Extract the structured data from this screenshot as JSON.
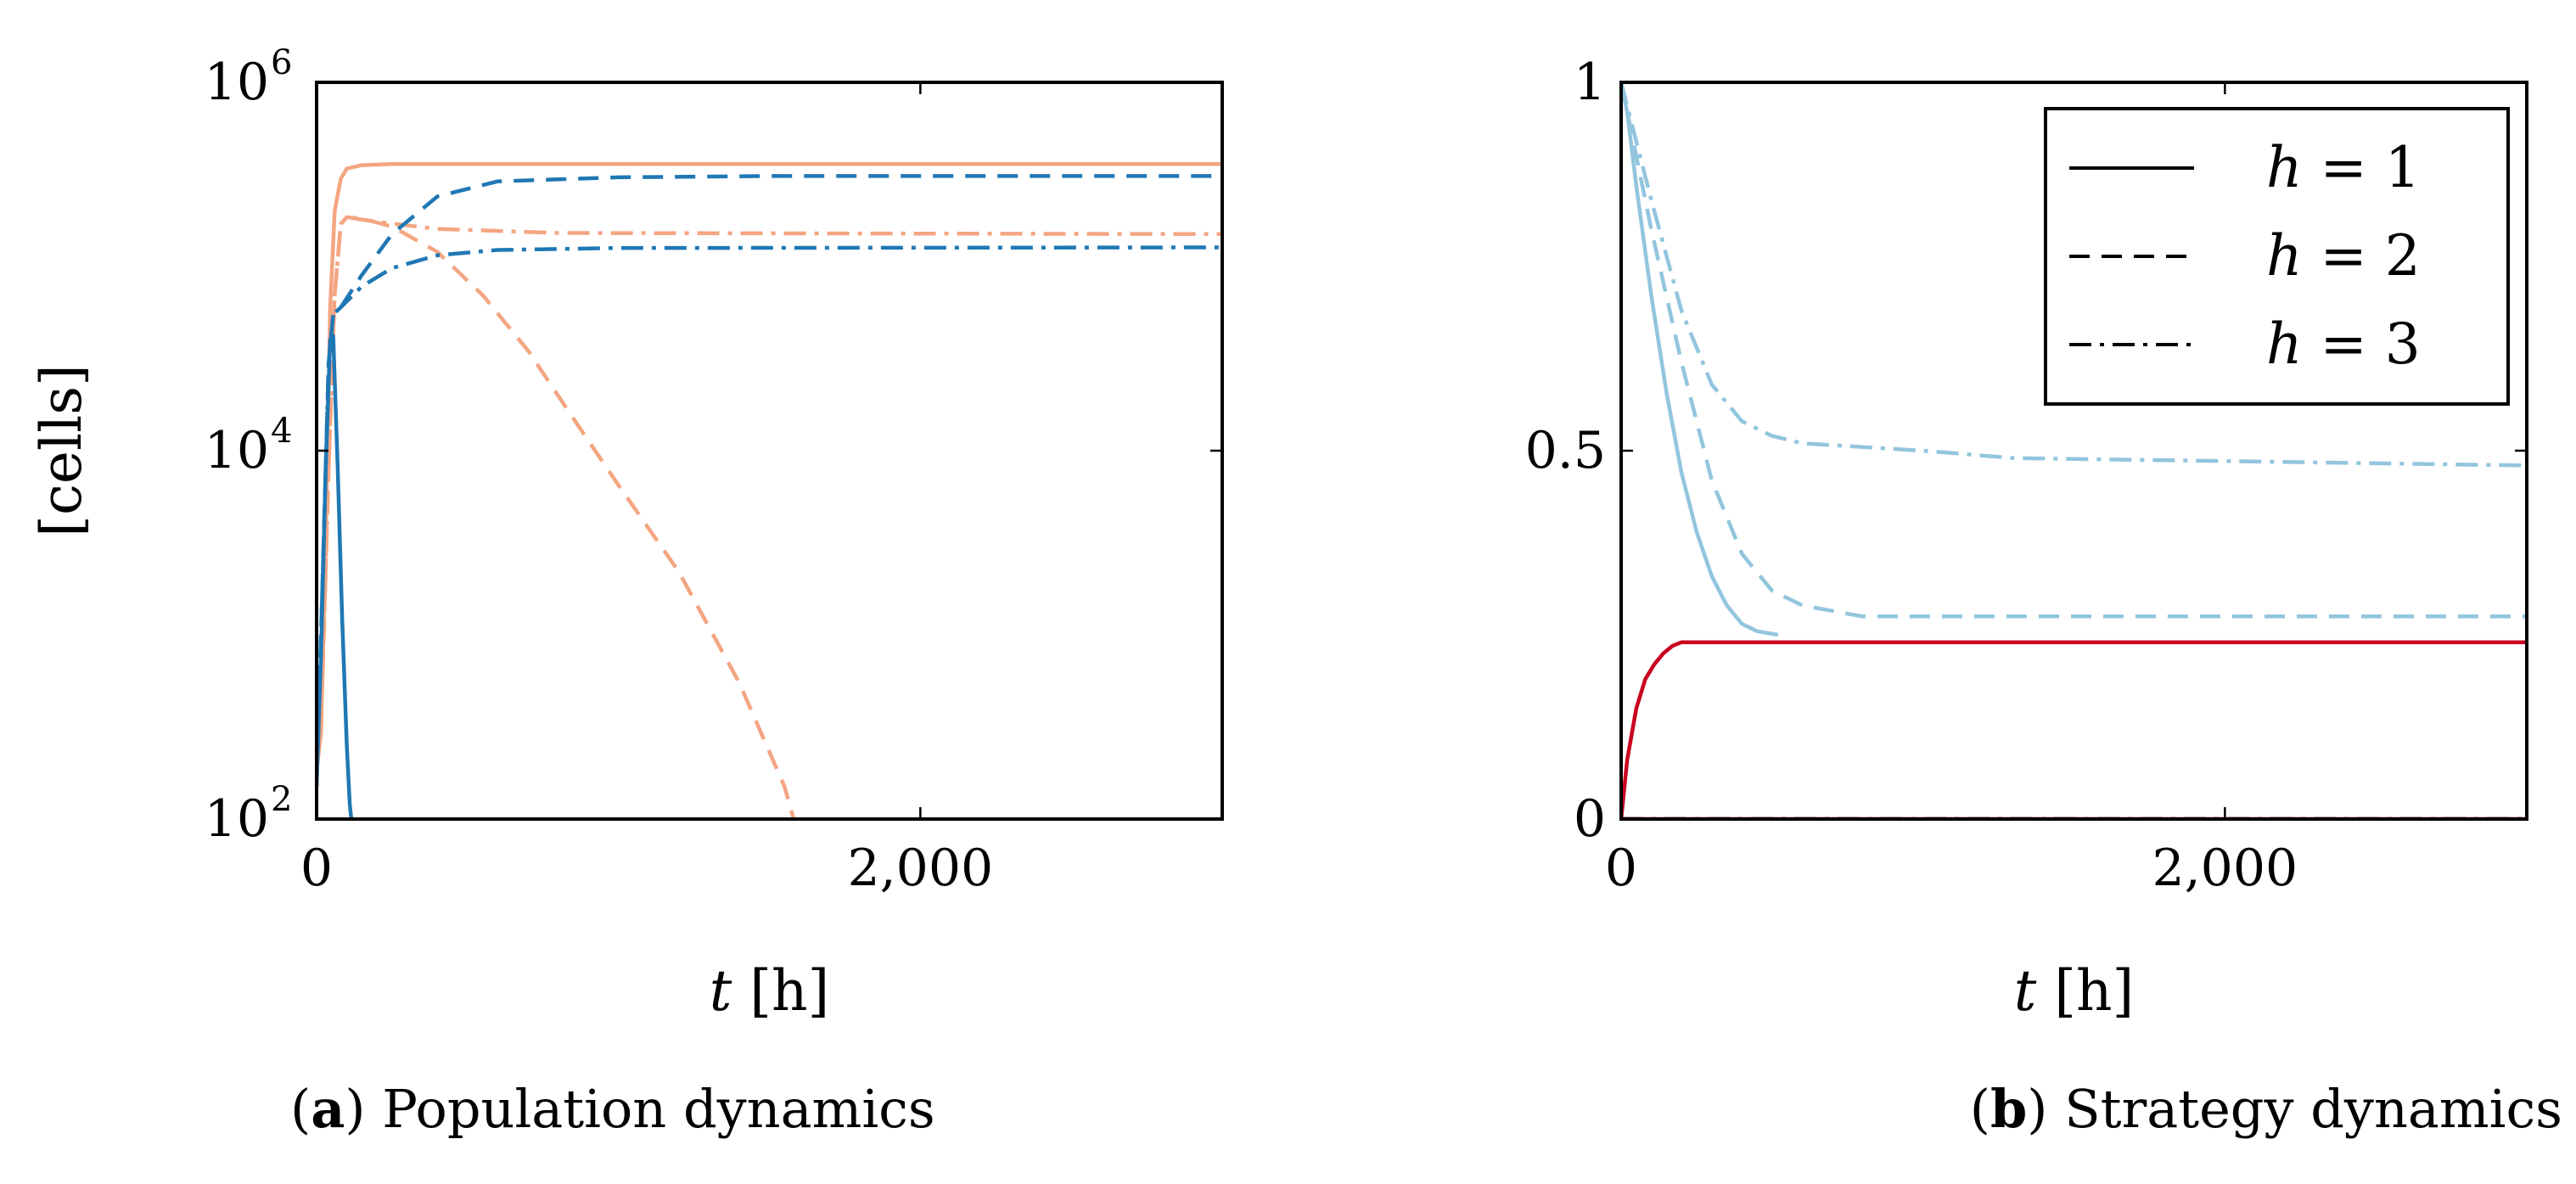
{
  "chart_data": [
    {
      "id": "a",
      "type": "line",
      "caption_letter": "a",
      "caption_text": "Population dynamics",
      "xlabel_var": "t",
      "xlabel_unit": "[h]",
      "ylabel": "[cells]",
      "yscale": "log",
      "xlim": [
        0,
        3000
      ],
      "ylim": [
        100,
        1000000
      ],
      "xticks": [
        {
          "value": 0,
          "label": "0"
        },
        {
          "value": 2000,
          "label": "2,000"
        }
      ],
      "yticks": [
        {
          "value": 100,
          "base": "10",
          "exp": "2"
        },
        {
          "value": 10000,
          "base": "10",
          "exp": "4"
        },
        {
          "value": 1000000,
          "base": "10",
          "exp": "6"
        }
      ],
      "series": [
        {
          "name": "orange h=1",
          "color": "#f4a582",
          "style": "solid",
          "points": [
            [
              0,
              180
            ],
            [
              15,
              300
            ],
            [
              30,
              3000
            ],
            [
              45,
              60000
            ],
            [
              60,
              200000
            ],
            [
              80,
              300000
            ],
            [
              100,
              340000
            ],
            [
              150,
              355000
            ],
            [
              250,
              360000
            ],
            [
              3000,
              360000
            ]
          ]
        },
        {
          "name": "orange h=2",
          "color": "#f4a582",
          "style": "dashed",
          "points": [
            [
              0,
              180
            ],
            [
              20,
              600
            ],
            [
              40,
              8000
            ],
            [
              60,
              70000
            ],
            [
              80,
              170000
            ],
            [
              100,
              185000
            ],
            [
              150,
              182000
            ],
            [
              250,
              165000
            ],
            [
              400,
              120000
            ],
            [
              550,
              70000
            ],
            [
              700,
              35000
            ],
            [
              850,
              15000
            ],
            [
              1000,
              6500
            ],
            [
              1200,
              2200
            ],
            [
              1400,
              550
            ],
            [
              1550,
              150
            ],
            [
              1580,
              100
            ]
          ]
        },
        {
          "name": "orange h=3",
          "color": "#f4a582",
          "style": "dashdot",
          "points": [
            [
              0,
              180
            ],
            [
              20,
              600
            ],
            [
              40,
              8000
            ],
            [
              60,
              70000
            ],
            [
              80,
              170000
            ],
            [
              100,
              185000
            ],
            [
              200,
              175000
            ],
            [
              400,
              160000
            ],
            [
              800,
              152000
            ],
            [
              3000,
              150000
            ]
          ]
        },
        {
          "name": "blue h=1",
          "color": "#1f78b4",
          "style": "solid",
          "points": [
            [
              0,
              150
            ],
            [
              15,
              800
            ],
            [
              30,
              8000
            ],
            [
              45,
              40000
            ],
            [
              55,
              42000
            ],
            [
              70,
              8000
            ],
            [
              85,
              1200
            ],
            [
              100,
              250
            ],
            [
              110,
              120
            ],
            [
              115,
              100
            ]
          ]
        },
        {
          "name": "blue h=2",
          "color": "#1f78b4",
          "style": "dashed",
          "points": [
            [
              0,
              150
            ],
            [
              20,
              2000
            ],
            [
              40,
              30000
            ],
            [
              55,
              55000
            ],
            [
              80,
              60000
            ],
            [
              150,
              90000
            ],
            [
              250,
              150000
            ],
            [
              400,
              240000
            ],
            [
              600,
              290000
            ],
            [
              1000,
              305000
            ],
            [
              1500,
              310000
            ],
            [
              3000,
              310000
            ]
          ]
        },
        {
          "name": "blue h=3",
          "color": "#1f78b4",
          "style": "dashdot",
          "points": [
            [
              0,
              150
            ],
            [
              20,
              2000
            ],
            [
              40,
              30000
            ],
            [
              55,
              55000
            ],
            [
              80,
              60000
            ],
            [
              150,
              78000
            ],
            [
              250,
              98000
            ],
            [
              400,
              115000
            ],
            [
              600,
              123000
            ],
            [
              1000,
              126000
            ],
            [
              3000,
              127000
            ]
          ]
        }
      ]
    },
    {
      "id": "b",
      "type": "line",
      "caption_letter": "b",
      "caption_text": "Strategy dynamics",
      "xlabel_var": "t",
      "xlabel_unit": "[h]",
      "ylabel": "",
      "yscale": "linear",
      "xlim": [
        0,
        3000
      ],
      "ylim": [
        0,
        1
      ],
      "xticks": [
        {
          "value": 0,
          "label": "0"
        },
        {
          "value": 2000,
          "label": "2,000"
        }
      ],
      "yticks": [
        {
          "value": 0,
          "label": "0"
        },
        {
          "value": 0.5,
          "label": "0.5"
        },
        {
          "value": 1,
          "label": "1"
        }
      ],
      "legend": {
        "position": "top-right",
        "entries": [
          {
            "style": "solid",
            "var": "h",
            "eq": " = 1"
          },
          {
            "style": "dashed",
            "var": "h",
            "eq": " = 2"
          },
          {
            "style": "dashdot",
            "var": "h",
            "eq": " = 3"
          }
        ]
      },
      "series": [
        {
          "name": "light blue h=1",
          "color": "#92c5de",
          "style": "solid",
          "points": [
            [
              0,
              1
            ],
            [
              20,
              0.96
            ],
            [
              50,
              0.86
            ],
            [
              100,
              0.71
            ],
            [
              150,
              0.58
            ],
            [
              200,
              0.47
            ],
            [
              250,
              0.39
            ],
            [
              300,
              0.33
            ],
            [
              350,
              0.29
            ],
            [
              400,
              0.265
            ],
            [
              450,
              0.255
            ],
            [
              520,
              0.25
            ]
          ]
        },
        {
          "name": "light blue h=2",
          "color": "#92c5de",
          "style": "dashed",
          "points": [
            [
              0,
              1
            ],
            [
              50,
              0.9
            ],
            [
              100,
              0.8
            ],
            [
              200,
              0.62
            ],
            [
              300,
              0.46
            ],
            [
              400,
              0.36
            ],
            [
              500,
              0.31
            ],
            [
              600,
              0.29
            ],
            [
              800,
              0.275
            ],
            [
              3000,
              0.275
            ]
          ]
        },
        {
          "name": "light blue h=3",
          "color": "#92c5de",
          "style": "dashdot",
          "points": [
            [
              0,
              1
            ],
            [
              50,
              0.92
            ],
            [
              100,
              0.84
            ],
            [
              200,
              0.69
            ],
            [
              300,
              0.59
            ],
            [
              400,
              0.54
            ],
            [
              500,
              0.52
            ],
            [
              600,
              0.51
            ],
            [
              800,
              0.505
            ],
            [
              1000,
              0.5
            ],
            [
              1300,
              0.49
            ],
            [
              3000,
              0.48
            ]
          ]
        },
        {
          "name": "red h=1",
          "color": "#ca0020",
          "style": "solid",
          "points": [
            [
              0,
              0
            ],
            [
              20,
              0.08
            ],
            [
              50,
              0.15
            ],
            [
              80,
              0.19
            ],
            [
              110,
              0.21
            ],
            [
              140,
              0.225
            ],
            [
              170,
              0.235
            ],
            [
              200,
              0.24
            ],
            [
              3000,
              0.24
            ]
          ]
        },
        {
          "name": "red baseline",
          "color": "#ca0020",
          "style": "solid",
          "points": [
            [
              0,
              0
            ],
            [
              3000,
              0
            ]
          ]
        },
        {
          "name": "black baseline",
          "color": "#000000",
          "style": "dashdot",
          "points": [
            [
              0,
              0
            ],
            [
              3000,
              0
            ]
          ]
        }
      ]
    }
  ]
}
